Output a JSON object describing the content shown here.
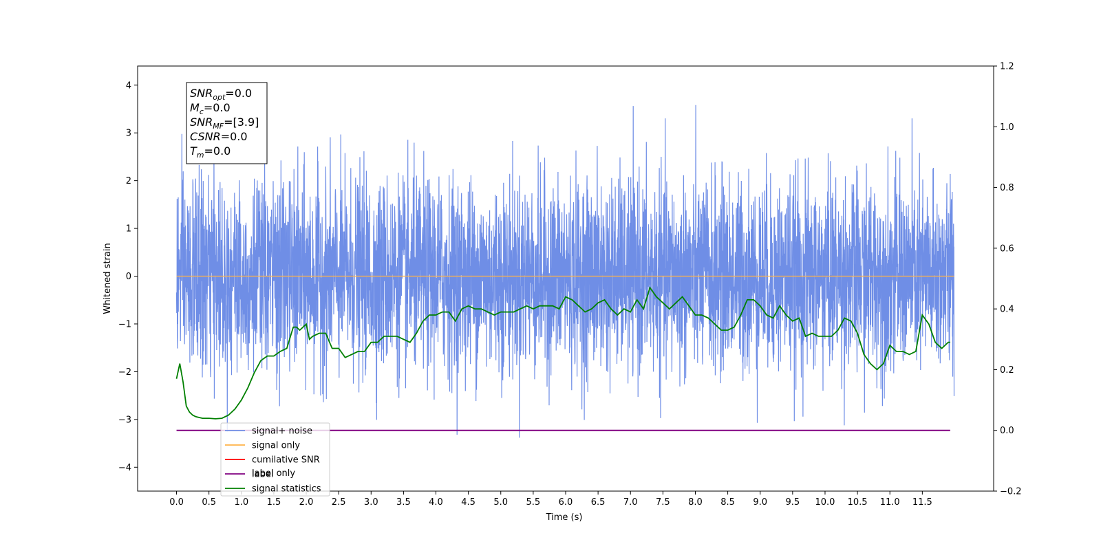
{
  "chart_data": {
    "type": "line",
    "xlabel": "Time (s)",
    "ylabel": "Whitened strain",
    "xlim": [
      -0.6,
      12.6
    ],
    "ylim": [
      -4.5,
      4.4
    ],
    "y2lim": [
      -0.2,
      1.2
    ],
    "x_ticks": [
      "0.0",
      "0.5",
      "1.0",
      "1.5",
      "2.0",
      "2.5",
      "3.0",
      "3.5",
      "4.0",
      "4.5",
      "5.0",
      "5.5",
      "6.0",
      "6.5",
      "7.0",
      "7.5",
      "8.0",
      "8.5",
      "9.0",
      "9.5",
      "10.0",
      "10.5",
      "11.0",
      "11.5"
    ],
    "y_ticks": [
      "-4",
      "-3",
      "-2",
      "-1",
      "0",
      "1",
      "2",
      "3",
      "4"
    ],
    "y2_ticks": [
      "-0.2",
      "0.0",
      "0.2",
      "0.4",
      "0.6",
      "0.8",
      "1.0",
      "1.2"
    ],
    "legend": [
      "signal+ noise",
      "signal only",
      "cumilative SNR",
      "label",
      "signal statistics"
    ],
    "legend_overlap_text": "label only",
    "legend_position": "lower-left",
    "colors": {
      "signal_noise": "#6f8ee6",
      "signal_only": "#ffb347",
      "cumulative_snr": "#ff0000",
      "label": "#800080",
      "statistics": "#008000"
    },
    "annotation": [
      {
        "base": "SNR",
        "sub": "opt",
        "rest": "=0.0"
      },
      {
        "base": "M",
        "sub": "c",
        "rest": "=0.0"
      },
      {
        "base": "SNR",
        "sub": "MF",
        "rest": "=[3.9]"
      },
      {
        "base": "CSNR",
        "sub": "",
        "rest": "=0.0"
      },
      {
        "base": "T",
        "sub": "m",
        "rest": "=0.0"
      }
    ],
    "series": [
      {
        "name": "signal+ noise",
        "x_range": [
          0.0,
          11.99
        ],
        "y_range": [
          -4.1,
          3.9
        ],
        "note": "dense noise trace"
      },
      {
        "name": "signal only",
        "x": [
          0.0,
          11.99
        ],
        "y": [
          0.0,
          0.0
        ]
      },
      {
        "name": "label",
        "axis": "right",
        "x": [
          0.0,
          11.93
        ],
        "y": [
          0.0,
          0.0
        ]
      },
      {
        "name": "signal statistics",
        "axis": "right",
        "x": [
          0.0,
          0.05,
          0.1,
          0.15,
          0.2,
          0.25,
          0.3,
          0.4,
          0.5,
          0.6,
          0.7,
          0.8,
          0.9,
          1.0,
          1.1,
          1.2,
          1.3,
          1.4,
          1.5,
          1.6,
          1.7,
          1.8,
          1.85,
          1.9,
          2.0,
          2.05,
          2.1,
          2.2,
          2.3,
          2.4,
          2.5,
          2.6,
          2.7,
          2.8,
          2.9,
          3.0,
          3.1,
          3.2,
          3.3,
          3.4,
          3.5,
          3.6,
          3.7,
          3.8,
          3.9,
          4.0,
          4.1,
          4.2,
          4.3,
          4.4,
          4.5,
          4.6,
          4.7,
          4.8,
          4.9,
          5.0,
          5.1,
          5.2,
          5.3,
          5.4,
          5.5,
          5.6,
          5.7,
          5.8,
          5.9,
          6.0,
          6.1,
          6.2,
          6.3,
          6.4,
          6.5,
          6.6,
          6.7,
          6.8,
          6.9,
          7.0,
          7.1,
          7.2,
          7.3,
          7.4,
          7.5,
          7.6,
          7.7,
          7.8,
          7.9,
          8.0,
          8.1,
          8.2,
          8.3,
          8.4,
          8.5,
          8.6,
          8.7,
          8.8,
          8.9,
          9.0,
          9.1,
          9.2,
          9.3,
          9.4,
          9.5,
          9.6,
          9.7,
          9.8,
          9.9,
          10.0,
          10.1,
          10.2,
          10.3,
          10.4,
          10.5,
          10.6,
          10.7,
          10.8,
          10.9,
          11.0,
          11.1,
          11.2,
          11.3,
          11.4,
          11.5,
          11.6,
          11.7,
          11.8,
          11.9,
          11.93
        ],
        "y": [
          0.17,
          0.22,
          0.16,
          0.08,
          0.06,
          0.05,
          0.045,
          0.04,
          0.04,
          0.038,
          0.04,
          0.05,
          0.07,
          0.1,
          0.14,
          0.19,
          0.23,
          0.245,
          0.245,
          0.26,
          0.27,
          0.34,
          0.34,
          0.33,
          0.35,
          0.3,
          0.31,
          0.32,
          0.32,
          0.27,
          0.27,
          0.24,
          0.25,
          0.26,
          0.26,
          0.29,
          0.29,
          0.31,
          0.31,
          0.31,
          0.3,
          0.29,
          0.32,
          0.36,
          0.38,
          0.38,
          0.39,
          0.39,
          0.36,
          0.4,
          0.41,
          0.4,
          0.4,
          0.39,
          0.38,
          0.39,
          0.39,
          0.39,
          0.4,
          0.41,
          0.4,
          0.41,
          0.41,
          0.41,
          0.4,
          0.44,
          0.43,
          0.41,
          0.39,
          0.4,
          0.42,
          0.43,
          0.4,
          0.38,
          0.4,
          0.39,
          0.43,
          0.4,
          0.47,
          0.44,
          0.42,
          0.4,
          0.42,
          0.44,
          0.41,
          0.38,
          0.38,
          0.37,
          0.35,
          0.33,
          0.33,
          0.34,
          0.38,
          0.43,
          0.43,
          0.41,
          0.38,
          0.37,
          0.41,
          0.38,
          0.36,
          0.37,
          0.31,
          0.32,
          0.31,
          0.31,
          0.31,
          0.33,
          0.37,
          0.36,
          0.32,
          0.25,
          0.22,
          0.2,
          0.22,
          0.28,
          0.26,
          0.26,
          0.25,
          0.26,
          0.38,
          0.35,
          0.29,
          0.27,
          0.29,
          0.29
        ]
      }
    ]
  }
}
